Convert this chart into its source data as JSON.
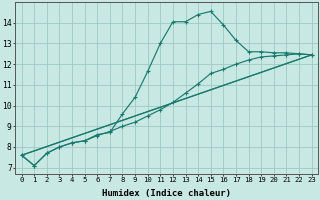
{
  "xlabel": "Humidex (Indice chaleur)",
  "xlim": [
    -0.5,
    23.5
  ],
  "ylim": [
    6.7,
    15.0
  ],
  "xticks": [
    0,
    1,
    2,
    3,
    4,
    5,
    6,
    7,
    8,
    9,
    10,
    11,
    12,
    13,
    14,
    15,
    16,
    17,
    18,
    19,
    20,
    21,
    22,
    23
  ],
  "yticks": [
    7,
    8,
    9,
    10,
    11,
    12,
    13,
    14
  ],
  "bg_color": "#c8e8e4",
  "grid_color": "#a0c8c4",
  "line_color": "#1a7a6e",
  "line1_x": [
    0,
    1,
    2,
    3,
    4,
    5,
    6,
    7,
    8,
    9,
    10,
    11,
    12,
    13,
    14,
    15,
    16,
    17,
    18,
    19,
    20,
    21,
    22,
    23
  ],
  "line1_y": [
    7.6,
    7.1,
    7.7,
    8.0,
    8.2,
    8.3,
    8.6,
    8.7,
    9.6,
    10.4,
    11.65,
    13.0,
    14.05,
    14.05,
    14.4,
    14.55,
    13.9,
    13.15,
    12.6,
    12.6,
    12.55,
    12.55,
    12.5,
    12.45
  ],
  "line2_x": [
    0,
    1,
    2,
    3,
    4,
    5,
    6,
    7,
    8,
    9,
    10,
    11,
    12,
    13,
    14,
    15,
    16,
    17,
    18,
    19,
    20,
    21,
    22,
    23
  ],
  "line2_y": [
    7.6,
    7.1,
    7.7,
    8.0,
    8.2,
    8.3,
    8.55,
    8.75,
    9.0,
    9.2,
    9.5,
    9.8,
    10.15,
    10.6,
    11.05,
    11.55,
    11.75,
    12.0,
    12.2,
    12.35,
    12.4,
    12.45,
    12.5,
    12.45
  ],
  "line3_x": [
    0,
    23
  ],
  "line3_y": [
    7.6,
    12.45
  ],
  "line4_x": [
    0,
    23
  ],
  "line4_y": [
    7.6,
    12.45
  ]
}
